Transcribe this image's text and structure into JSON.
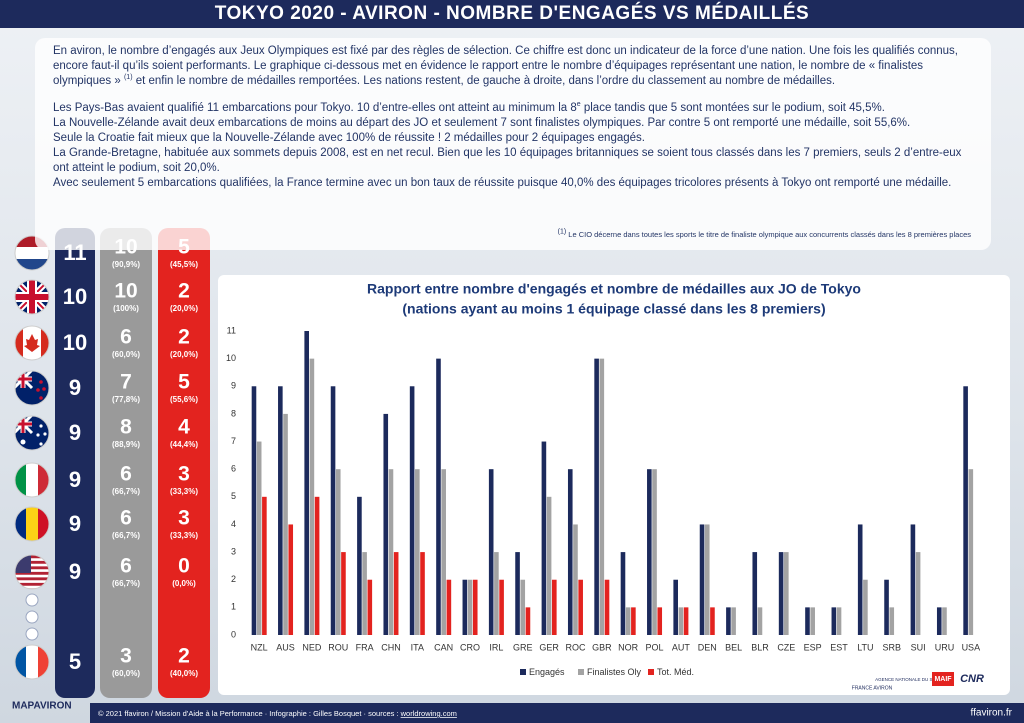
{
  "header": {
    "title": "TOKYO 2020 - AVIRON - NOMBRE D'ENGAGÉS VS MÉDAILLÉS"
  },
  "intro": {
    "p1": [
      "En aviron, le nombre d’engagés aux Jeux Olympiques est fixé par des règles de sélection. Ce chiffre est donc un indicateur de la force d’une nation. Une fois les qualifiés connus, encore faut-il qu’ils soient performants. Le graphique ci-dessous met en évidence le rapport entre le nombre d’équipages représentant une nation, le nombre de « finalistes olympiques » ",
      "(1)",
      " et enfin le nombre de médailles remportées. Les nations restent, de gauche à droite, dans l’ordre du classement au nombre de médailles."
    ],
    "p2": [
      "Les Pays-Bas avaient qualifié 11 embarcations pour Tokyo. 10 d’entre-elles ont atteint au minimum la 8",
      "e",
      " place tandis que 5 sont montées sur le podium, soit 45,5%."
    ],
    "lines": [
      "La Nouvelle-Zélande avait deux embarcations de moins au départ des JO et seulement 7 sont finalistes olympiques. Par contre 5 ont remporté une médaille, soit 55,6%.",
      "Seule la Croatie fait mieux que la Nouvelle-Zélande avec 100% de réussite ! 2 médailles pour 2 équipages engagés.",
      "La Grande-Bretagne, habituée aux sommets depuis 2008, est en net recul. Bien que les 10 équipages britanniques se soient tous classés dans les 7 premiers, seuls 2 d’entre-eux ont atteint le podium, soit 20,0%.",
      "Avec seulement 5 embarcations qualifiées, la France termine avec un bon taux de réussite puisque 40,0% des équipages tricolores présents à Tokyo ont remporté une médaille."
    ],
    "footnote": [
      "(1)",
      " Le CIO décerne dans toutes les sports le titre de finaliste olympique aux concurrents classés dans les 8 premières places"
    ]
  },
  "nations": [
    {
      "engages": "11",
      "finalistes": "10",
      "finalistes_pct": "(90,9%)",
      "medailles": "5",
      "medailles_pct": "(45,5%)"
    },
    {
      "engages": "10",
      "finalistes": "10",
      "finalistes_pct": "(100%)",
      "medailles": "2",
      "medailles_pct": "(20,0%)"
    },
    {
      "engages": "10",
      "finalistes": "6",
      "finalistes_pct": "(60,0%)",
      "medailles": "2",
      "medailles_pct": "(20,0%)"
    },
    {
      "engages": "9",
      "finalistes": "7",
      "finalistes_pct": "(77,8%)",
      "medailles": "5",
      "medailles_pct": "(55,6%)"
    },
    {
      "engages": "9",
      "finalistes": "8",
      "finalistes_pct": "(88,9%)",
      "medailles": "4",
      "medailles_pct": "(44,4%)"
    },
    {
      "engages": "9",
      "finalistes": "6",
      "finalistes_pct": "(66,7%)",
      "medailles": "3",
      "medailles_pct": "(33,3%)"
    },
    {
      "engages": "9",
      "finalistes": "6",
      "finalistes_pct": "(66,7%)",
      "medailles": "3",
      "medailles_pct": "(33,3%)"
    },
    {
      "engages": "9",
      "finalistes": "6",
      "finalistes_pct": "(66,7%)",
      "medailles": "0",
      "medailles_pct": "(0,0%)"
    },
    {
      "engages": "5",
      "finalistes": "3",
      "finalistes_pct": "(60,0%)",
      "medailles": "2",
      "medailles_pct": "(40,0%)"
    }
  ],
  "chart_data": {
    "type": "bar",
    "title": "Rapport entre nombre d'engagés et nombre de médailles aux JO de Tokyo",
    "subtitle": "(nations ayant au moins 1 équipage classé dans les 8 premiers)",
    "categories": [
      "NZL",
      "AUS",
      "NED",
      "ROU",
      "FRA",
      "CHN",
      "ITA",
      "CAN",
      "CRO",
      "IRL",
      "GRE",
      "GER",
      "ROC",
      "GBR",
      "NOR",
      "POL",
      "AUT",
      "DEN",
      "BEL",
      "BLR",
      "CZE",
      "ESP",
      "EST",
      "LTU",
      "SRB",
      "SUI",
      "URU",
      "USA"
    ],
    "series": [
      {
        "name": "Engagés",
        "color": "#1c2a5c",
        "values": [
          9,
          9,
          11,
          9,
          5,
          8,
          9,
          10,
          2,
          6,
          3,
          7,
          6,
          10,
          3,
          6,
          2,
          4,
          1,
          3,
          3,
          1,
          1,
          4,
          2,
          4,
          1,
          9
        ]
      },
      {
        "name": "Finalistes Oly",
        "color": "#a3a3a3",
        "values": [
          7,
          8,
          10,
          6,
          3,
          6,
          6,
          6,
          2,
          3,
          2,
          5,
          4,
          10,
          1,
          6,
          1,
          4,
          1,
          1,
          3,
          1,
          1,
          2,
          1,
          3,
          1,
          6
        ]
      },
      {
        "name": "Tot. Méd.",
        "color": "#e3231f",
        "values": [
          5,
          4,
          5,
          3,
          2,
          3,
          3,
          2,
          2,
          2,
          1,
          2,
          2,
          2,
          1,
          1,
          1,
          1,
          0,
          0,
          0,
          0,
          0,
          0,
          0,
          0,
          0,
          0
        ]
      }
    ],
    "ylim": [
      0,
      11
    ],
    "yticks": [
      0,
      1,
      2,
      3,
      4,
      5,
      6,
      7,
      8,
      9,
      10,
      11
    ],
    "grid": false,
    "legend": "bottom"
  },
  "sponsors": [
    "FRANCE AVIRON",
    "AGENCE NATIONALE DU SPORT",
    "MAIF",
    "CNR"
  ],
  "footer": {
    "logo": "MAPAVIRON",
    "credits": "© 2021 ffaviron / Mission d’Aide à la Performance · Infographie : Gilles Bosquet · sources : ",
    "source": "worldrowing.com",
    "site": "ffaviron.fr"
  }
}
